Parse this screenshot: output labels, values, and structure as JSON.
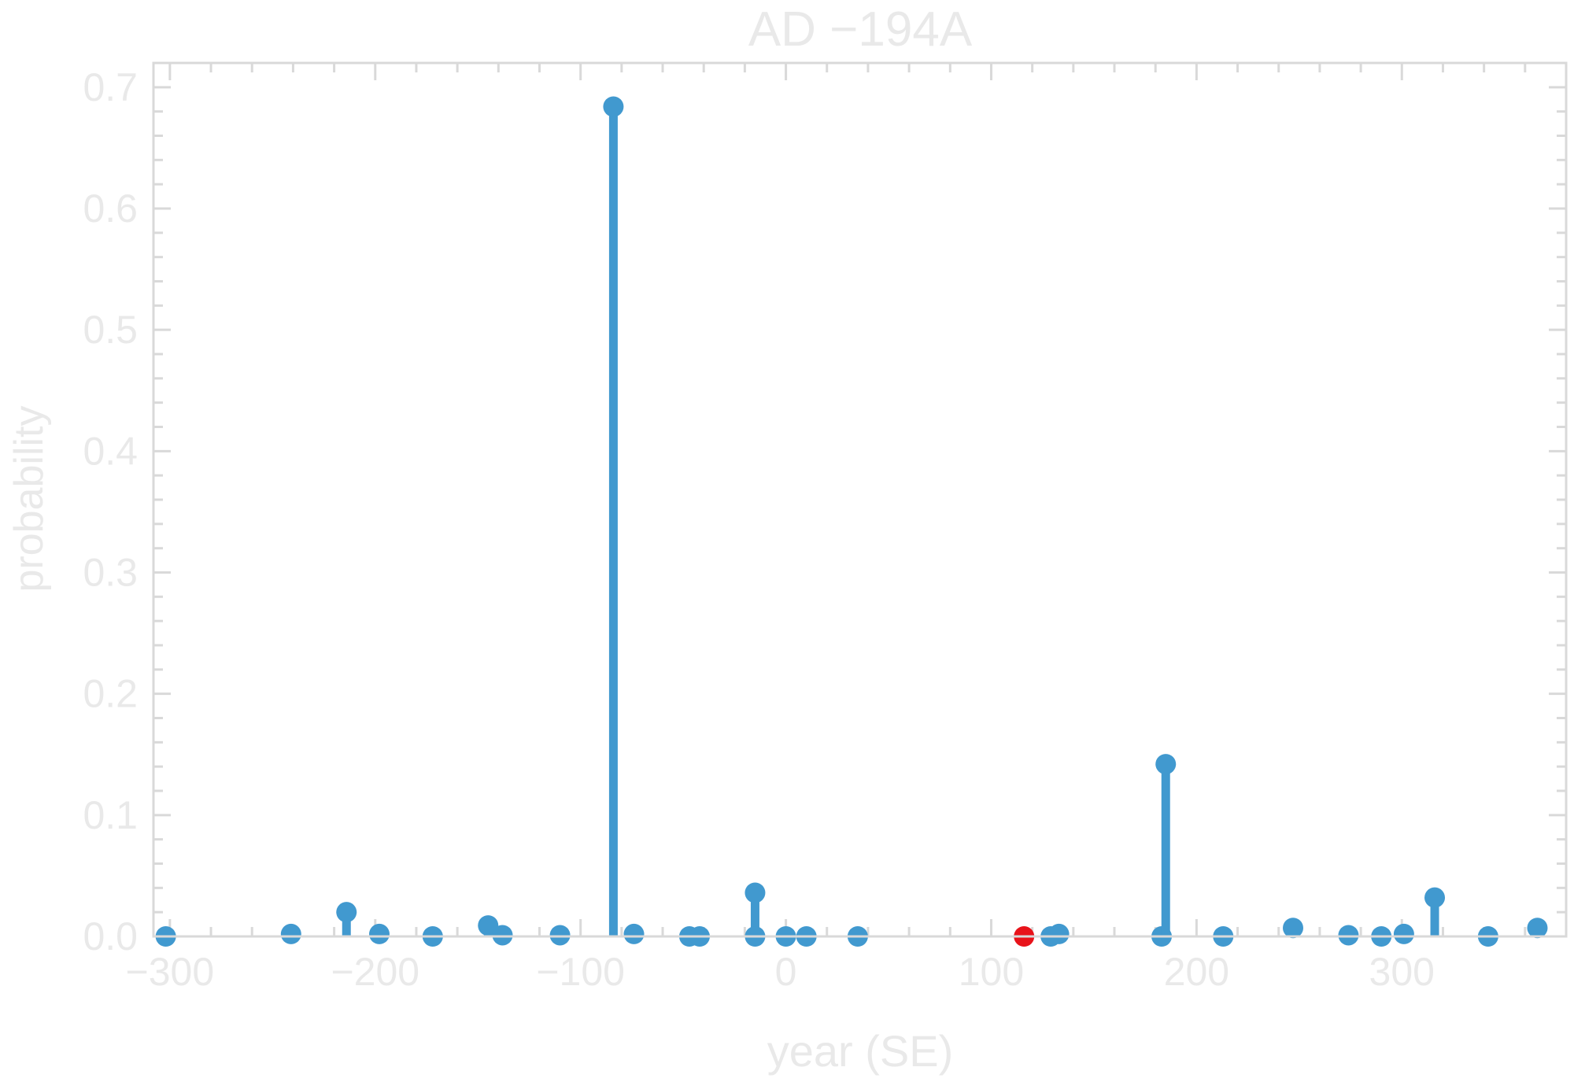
{
  "chart_data": {
    "type": "stem",
    "title": "AD −194A",
    "xlabel": "year (SE)",
    "ylabel": "probability",
    "xlim": [
      -308,
      380
    ],
    "ylim": [
      0,
      0.72
    ],
    "x_ticks": [
      -300,
      -200,
      -100,
      0,
      100,
      200,
      300
    ],
    "x_tick_labels": [
      "−300",
      "−200",
      "−100",
      "0",
      "100",
      "200",
      "300"
    ],
    "y_ticks": [
      0.0,
      0.1,
      0.2,
      0.3,
      0.4,
      0.5,
      0.6,
      0.7
    ],
    "y_tick_labels": [
      "0.0",
      "0.1",
      "0.2",
      "0.3",
      "0.4",
      "0.5",
      "0.6",
      "0.7"
    ],
    "grid": false,
    "colors": {
      "stem": "#4199cf",
      "highlight": "#e8131a",
      "frame": "#d9d9d9",
      "text": "#e9e9e9"
    },
    "series": [
      {
        "points": [
          [
            -302,
            0.0
          ],
          [
            -241,
            0.002
          ],
          [
            -214,
            0.02
          ],
          [
            -198,
            0.002
          ],
          [
            -172,
            0.0
          ],
          [
            -145,
            0.009
          ],
          [
            -138,
            0.001
          ],
          [
            -110,
            0.001
          ],
          [
            -84,
            0.684
          ],
          [
            -74,
            0.002
          ],
          [
            -47,
            0.0
          ],
          [
            -42,
            0.0
          ],
          [
            -15,
            0.036
          ],
          [
            -15,
            0.0
          ],
          [
            0,
            0.0
          ],
          [
            10,
            0.0
          ],
          [
            35,
            0.0
          ],
          [
            129,
            0.0
          ],
          [
            133,
            0.002
          ],
          [
            183,
            0.0
          ],
          [
            185,
            0.142
          ],
          [
            213,
            0.0
          ],
          [
            247,
            0.007
          ],
          [
            274,
            0.001
          ],
          [
            290,
            0.0
          ],
          [
            301,
            0.002
          ],
          [
            316,
            0.032
          ],
          [
            342,
            0.0
          ],
          [
            366,
            0.007
          ]
        ]
      }
    ],
    "highlight_points": [
      [
        116,
        0.0
      ]
    ]
  }
}
